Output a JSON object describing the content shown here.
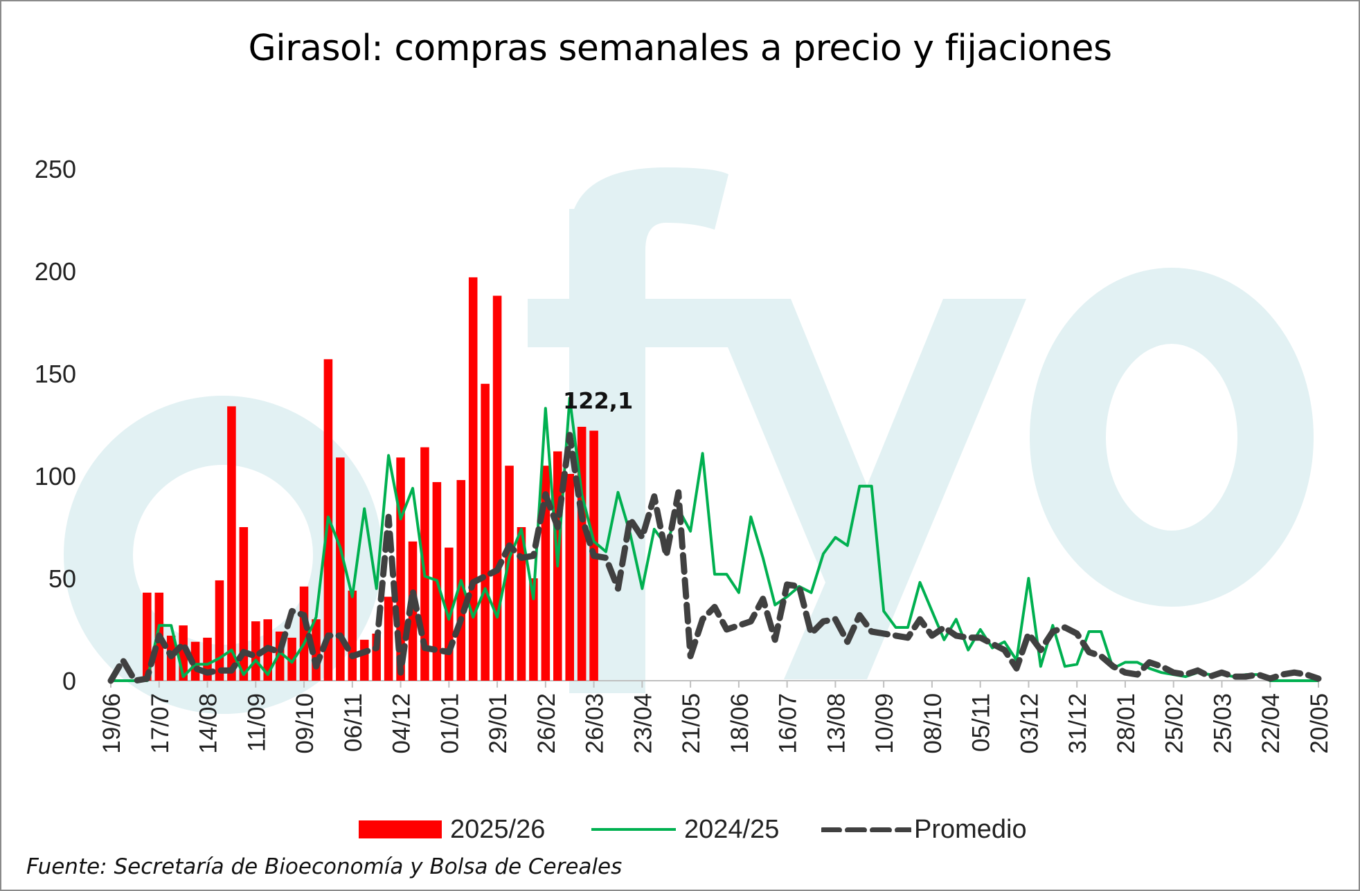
{
  "chart_data": {
    "type": "bar",
    "title": "Girasol: compras semanales a precio y fijaciones",
    "ylim": [
      0,
      250
    ],
    "y_ticks": [
      0,
      50,
      100,
      150,
      200,
      250
    ],
    "x_tick_labels": [
      "19/06",
      "17/07",
      "14/08",
      "11/09",
      "09/10",
      "06/11",
      "04/12",
      "01/01",
      "29/01",
      "26/02",
      "26/03",
      "23/04",
      "21/05",
      "18/06",
      "16/07",
      "13/08",
      "10/09",
      "08/10",
      "05/11",
      "03/12",
      "31/12",
      "28/01",
      "25/02",
      "25/03",
      "22/04",
      "20/05"
    ],
    "x_tick_weeks": [
      0,
      4,
      8,
      12,
      16,
      20,
      24,
      28,
      32,
      36,
      40,
      44,
      48,
      52,
      56,
      60,
      64,
      68,
      72,
      76,
      80,
      84,
      88,
      92,
      96,
      100
    ],
    "week_count": 101,
    "grid": false,
    "legend_position": "bottom",
    "series": [
      {
        "name": "2025/26",
        "type": "bar",
        "color": "#ff0000",
        "values": [
          0,
          0,
          0,
          43,
          43,
          22,
          27,
          19,
          21,
          49,
          134,
          75,
          29,
          30,
          24,
          21,
          46,
          30,
          157,
          109,
          44,
          20,
          23,
          41,
          109,
          68,
          114,
          97,
          65,
          98,
          197,
          145,
          188,
          105,
          75,
          50,
          105,
          112,
          101,
          124,
          122.1
        ]
      },
      {
        "name": "2024/25",
        "type": "line",
        "color": "#00b050",
        "values": [
          0,
          0,
          0,
          0,
          27,
          27,
          2,
          8,
          8,
          11,
          15,
          3,
          10,
          3,
          14,
          9,
          18,
          31,
          80,
          65,
          41,
          84,
          45,
          110,
          79,
          94,
          51,
          49,
          30,
          49,
          31,
          45,
          31,
          60,
          74,
          40,
          133,
          56,
          138,
          91,
          68,
          63,
          92,
          72,
          45,
          74,
          66,
          84,
          73,
          111,
          52,
          52,
          43,
          80,
          60,
          37,
          41,
          46,
          43,
          62,
          70,
          66,
          95,
          95,
          34,
          26,
          26,
          48,
          34,
          20,
          30,
          15,
          25,
          16,
          19,
          10,
          50,
          7,
          27,
          7,
          8,
          24,
          24,
          6,
          9,
          9,
          6,
          4,
          3,
          2,
          4,
          3,
          3,
          2,
          3,
          3,
          0,
          0,
          0,
          0,
          0
        ]
      },
      {
        "name": "Promedio",
        "type": "line",
        "style": "dashed",
        "color": "#404040",
        "values": [
          0,
          10,
          0,
          1,
          22,
          12,
          18,
          6,
          4,
          5,
          5,
          14,
          12,
          16,
          14,
          34,
          32,
          7,
          22,
          22,
          12,
          14,
          16,
          80,
          4,
          44,
          16,
          15,
          14,
          30,
          48,
          51,
          54,
          66,
          60,
          61,
          91,
          75,
          120,
          80,
          61,
          60,
          45,
          79,
          70,
          90,
          61,
          92,
          12,
          30,
          36,
          25,
          27,
          29,
          40,
          20,
          47,
          46,
          23,
          29,
          30,
          19,
          32,
          24,
          23,
          22,
          21,
          30,
          22,
          26,
          22,
          21,
          21,
          18,
          15,
          6,
          23,
          15,
          24,
          26,
          23,
          14,
          12,
          7,
          4,
          3,
          9,
          7,
          4,
          3,
          5,
          2,
          4,
          2,
          2,
          3,
          1,
          3,
          4,
          3,
          1
        ]
      }
    ],
    "annotations": [
      {
        "label": "122,1",
        "week": 40,
        "value": 122.1
      }
    ]
  },
  "legend": {
    "bar_label": "2025/26",
    "line_label": "2024/25",
    "dashed_label": "Promedio"
  },
  "watermark": "fyo",
  "footer": "Fuente: Secretaría de Bioeconomía y Bolsa de Cereales"
}
